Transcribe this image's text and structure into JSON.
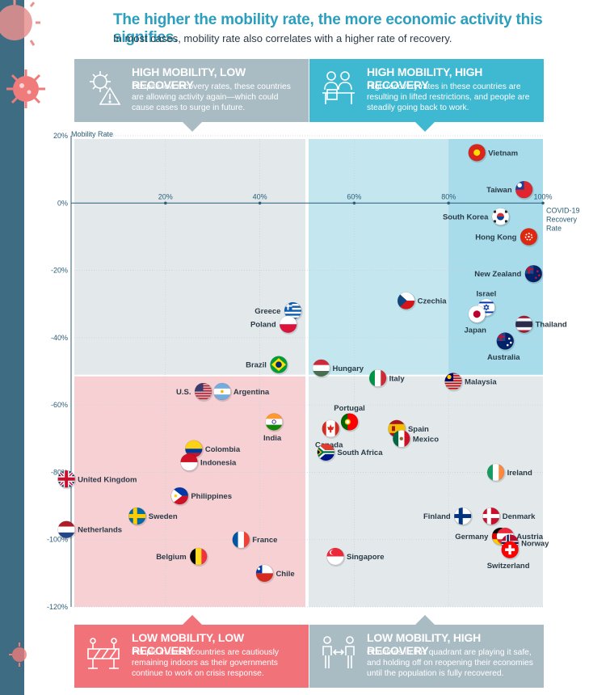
{
  "title": "The higher the mobility rate, the more economic activity this signifies.",
  "subtitle": "In most cases, mobility rate also correlates with a higher rate of recovery.",
  "quadrants": {
    "top_left": {
      "title": "HIGH MOBILITY, LOW RECOVERY",
      "text": "Despite low recovery rates, these countries are allowing activity again—which could cause cases to surge in future.",
      "color": "#a9bcc4"
    },
    "top_right": {
      "title": "HIGH MOBILITY, HIGH RECOVERY",
      "text": "High recovery rates in these countries are resulting in lifted restrictions, and people are steadily going back to work.",
      "color": "#3fb8d1"
    },
    "bottom_left": {
      "title": "LOW MOBILITY, LOW RECOVERY",
      "text": "People in these countries are cautiously remaining indoors as their governments continue to work on crisis response.",
      "color": "#f2727a"
    },
    "bottom_right": {
      "title": "LOW MOBILITY, HIGH RECOVERY",
      "text": "Countries in this quadrant are playing it safe, and holding off on reopening their economies until the population is fully recovered.",
      "color": "#a9bcc4"
    }
  },
  "chart_data": {
    "type": "scatter",
    "xlabel": "COVID-19 Recovery Rate",
    "ylabel": "Mobility Rate",
    "xlim": [
      0,
      100
    ],
    "ylim": [
      -120,
      20
    ],
    "x_ticks": [
      "20%",
      "40%",
      "60%",
      "80%",
      "100%"
    ],
    "y_ticks": [
      "20%",
      "0%",
      "-20%",
      "-40%",
      "-60%",
      "-80%",
      "-100%",
      "-120%"
    ],
    "points": [
      {
        "country": "Vietnam",
        "x": 86,
        "y": 15,
        "flag": "vn"
      },
      {
        "country": "Taiwan",
        "x": 96,
        "y": 4,
        "flag": "tw"
      },
      {
        "country": "South Korea",
        "x": 91,
        "y": -4,
        "flag": "kr"
      },
      {
        "country": "Hong Kong",
        "x": 97,
        "y": -10,
        "flag": "hk"
      },
      {
        "country": "New Zealand",
        "x": 98,
        "y": -21,
        "flag": "nz"
      },
      {
        "country": "Czechia",
        "x": 71,
        "y": -29,
        "flag": "cz"
      },
      {
        "country": "Israel",
        "x": 88,
        "y": -31,
        "flag": "il"
      },
      {
        "country": "Japan",
        "x": 86,
        "y": -33,
        "flag": "jp"
      },
      {
        "country": "Thailand",
        "x": 96,
        "y": -36,
        "flag": "th"
      },
      {
        "country": "Australia",
        "x": 92,
        "y": -41,
        "flag": "au"
      },
      {
        "country": "Greece",
        "x": 47,
        "y": -32,
        "flag": "gr"
      },
      {
        "country": "Poland",
        "x": 46,
        "y": -36,
        "flag": "pl"
      },
      {
        "country": "Brazil",
        "x": 44,
        "y": -48,
        "flag": "br"
      },
      {
        "country": "Hungary",
        "x": 53,
        "y": -49,
        "flag": "hu"
      },
      {
        "country": "Italy",
        "x": 65,
        "y": -52,
        "flag": "it"
      },
      {
        "country": "Malaysia",
        "x": 81,
        "y": -53,
        "flag": "my"
      },
      {
        "country": "U.S.",
        "x": 28,
        "y": -56,
        "flag": "us"
      },
      {
        "country": "Argentina",
        "x": 32,
        "y": -56,
        "flag": "ar"
      },
      {
        "country": "India",
        "x": 43,
        "y": -65,
        "flag": "in"
      },
      {
        "country": "Portugal",
        "x": 59,
        "y": -65,
        "flag": "pt"
      },
      {
        "country": "Canada",
        "x": 55,
        "y": -67,
        "flag": "ca"
      },
      {
        "country": "Spain",
        "x": 69,
        "y": -67,
        "flag": "es"
      },
      {
        "country": "Mexico",
        "x": 70,
        "y": -70,
        "flag": "mx"
      },
      {
        "country": "South Africa",
        "x": 54,
        "y": -74,
        "flag": "za"
      },
      {
        "country": "Colombia",
        "x": 26,
        "y": -73,
        "flag": "co"
      },
      {
        "country": "Indonesia",
        "x": 25,
        "y": -77,
        "flag": "id"
      },
      {
        "country": "Ireland",
        "x": 90,
        "y": -80,
        "flag": "ie"
      },
      {
        "country": "United Kingdom",
        "x": -1,
        "y": -82,
        "flag": "gb"
      },
      {
        "country": "Philippines",
        "x": 23,
        "y": -87,
        "flag": "ph"
      },
      {
        "country": "Sweden",
        "x": 14,
        "y": -93,
        "flag": "se"
      },
      {
        "country": "Finland",
        "x": 83,
        "y": -93,
        "flag": "fi"
      },
      {
        "country": "Denmark",
        "x": 89,
        "y": -93,
        "flag": "dk"
      },
      {
        "country": "Netherlands",
        "x": -1,
        "y": -97,
        "flag": "nl"
      },
      {
        "country": "France",
        "x": 36,
        "y": -100,
        "flag": "fr"
      },
      {
        "country": "Germany",
        "x": 91,
        "y": -99,
        "flag": "de"
      },
      {
        "country": "Austria",
        "x": 92,
        "y": -99,
        "flag": "at"
      },
      {
        "country": "Norway",
        "x": 93,
        "y": -101,
        "flag": "no"
      },
      {
        "country": "Switzerland",
        "x": 93,
        "y": -103,
        "flag": "ch"
      },
      {
        "country": "Belgium",
        "x": 27,
        "y": -105,
        "flag": "be"
      },
      {
        "country": "Singapore",
        "x": 56,
        "y": -105,
        "flag": "sg"
      },
      {
        "country": "Chile",
        "x": 41,
        "y": -110,
        "flag": "cl"
      }
    ]
  }
}
